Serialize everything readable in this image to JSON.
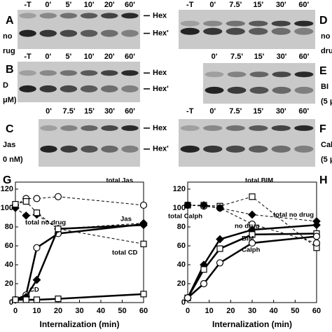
{
  "gels": [
    {
      "letter": "A",
      "lanes": [
        "-T",
        "0'",
        "5'",
        "10'",
        "20'",
        "60'"
      ],
      "side": [
        "no",
        "rug"
      ],
      "markers": [
        "Hex",
        "Hex'"
      ]
    },
    {
      "letter": "B",
      "lanes": [
        "-T",
        "0'",
        "5'",
        "10'",
        "20'",
        "60'"
      ],
      "side": [
        "D",
        "μM)"
      ],
      "markers": [
        "Hex",
        "Hex'"
      ]
    },
    {
      "letter": "C",
      "lanes": [
        "0'",
        "7.5'",
        "15'",
        "30'",
        "60'"
      ],
      "side": [
        "Jas",
        "0 nM)"
      ],
      "markers": [
        "Hex",
        "Hex'"
      ]
    },
    {
      "letter": "D",
      "lanes": [
        "-T",
        "0'",
        "7.5'",
        "15'",
        "30'",
        "60'"
      ],
      "side": [
        "no",
        "dru"
      ]
    },
    {
      "letter": "E",
      "lanes": [
        "0'",
        "7.5'",
        "15'",
        "30'",
        "60'"
      ],
      "side": [
        "BI",
        "(5 μ"
      ]
    },
    {
      "letter": "F",
      "lanes": [
        "-T",
        "0'",
        "7.5'",
        "15'",
        "30'",
        "60'"
      ],
      "side": [
        "Cal",
        "(5 μ"
      ]
    }
  ],
  "chart_data": [
    {
      "type": "line",
      "panel": "G",
      "xlabel": "Internalization (min)",
      "xlim": [
        0,
        60
      ],
      "xticks": [
        0,
        10,
        20,
        30,
        40,
        50,
        60
      ],
      "ylim": [
        0,
        120
      ],
      "yticks": [
        0,
        20,
        40,
        60,
        80,
        100,
        120
      ],
      "series": [
        {
          "name": "total Jas",
          "marker": "circle",
          "dashed": true,
          "color": "#000000",
          "x": [
            0,
            5,
            10,
            20,
            60
          ],
          "values": [
            103,
            110,
            110,
            112,
            103
          ]
        },
        {
          "name": "Jas",
          "marker": "circle",
          "dashed": false,
          "color": "#000000",
          "x": [
            0,
            5,
            10,
            20,
            60
          ],
          "values": [
            3,
            8,
            58,
            73,
            83
          ]
        },
        {
          "name": "total no drug",
          "marker": "diamond",
          "dashed": true,
          "color": "#000000",
          "x": [
            0,
            5,
            10,
            20,
            60
          ],
          "values": [
            100,
            92,
            93,
            78,
            84
          ]
        },
        {
          "marker": "diamond",
          "dashed": false,
          "color": "#000000",
          "x": [
            0,
            5,
            10,
            20,
            60
          ],
          "values": [
            3,
            6,
            24,
            78,
            82
          ]
        },
        {
          "name": "total CD",
          "marker": "square",
          "dashed": true,
          "color": "#000000",
          "x": [
            0,
            5,
            10,
            20,
            60
          ],
          "values": [
            104,
            107,
            95,
            78,
            62
          ]
        },
        {
          "name": "CD",
          "marker": "square",
          "dashed": false,
          "color": "#000000",
          "x": [
            0,
            5,
            10,
            20,
            60
          ],
          "values": [
            3,
            3,
            3,
            4,
            9
          ]
        }
      ]
    },
    {
      "type": "line",
      "panel": "H",
      "xlabel": "Internalization (min)",
      "xlim": [
        0,
        60
      ],
      "xticks": [
        0,
        10,
        20,
        30,
        40,
        50,
        60
      ],
      "ylim": [
        0,
        120
      ],
      "yticks": [
        0,
        20,
        40,
        60,
        80,
        100,
        120
      ],
      "series": [
        {
          "name": "total BIM",
          "marker": "square",
          "dashed": true,
          "color": "#000000",
          "x": [
            0,
            7.5,
            15,
            30,
            60
          ],
          "values": [
            103,
            103,
            102,
            112,
            58
          ]
        },
        {
          "name": "total Calph",
          "marker": "circle",
          "dashed": true,
          "color": "#000000",
          "x": [
            0,
            7.5,
            15,
            30,
            60
          ],
          "values": [
            103,
            102,
            100,
            83,
            63
          ]
        },
        {
          "name": "total no drug",
          "marker": "diamond",
          "dashed": true,
          "color": "#000000",
          "x": [
            0,
            7.5,
            15,
            30,
            60
          ],
          "values": [
            103,
            103,
            100,
            93,
            86
          ]
        },
        {
          "name": "no drug",
          "marker": "diamond",
          "dashed": false,
          "color": "#000000",
          "x": [
            0,
            7.5,
            15,
            30,
            60
          ],
          "values": [
            5,
            40,
            67,
            77,
            82
          ]
        },
        {
          "name": "BIM",
          "marker": "square",
          "dashed": false,
          "color": "#000000",
          "x": [
            0,
            7.5,
            15,
            30,
            60
          ],
          "values": [
            5,
            35,
            57,
            72,
            73
          ]
        },
        {
          "name": "Calph",
          "marker": "circle",
          "dashed": false,
          "color": "#000000",
          "x": [
            0,
            7.5,
            15,
            30,
            60
          ],
          "values": [
            5,
            20,
            42,
            63,
            70
          ]
        }
      ]
    }
  ]
}
